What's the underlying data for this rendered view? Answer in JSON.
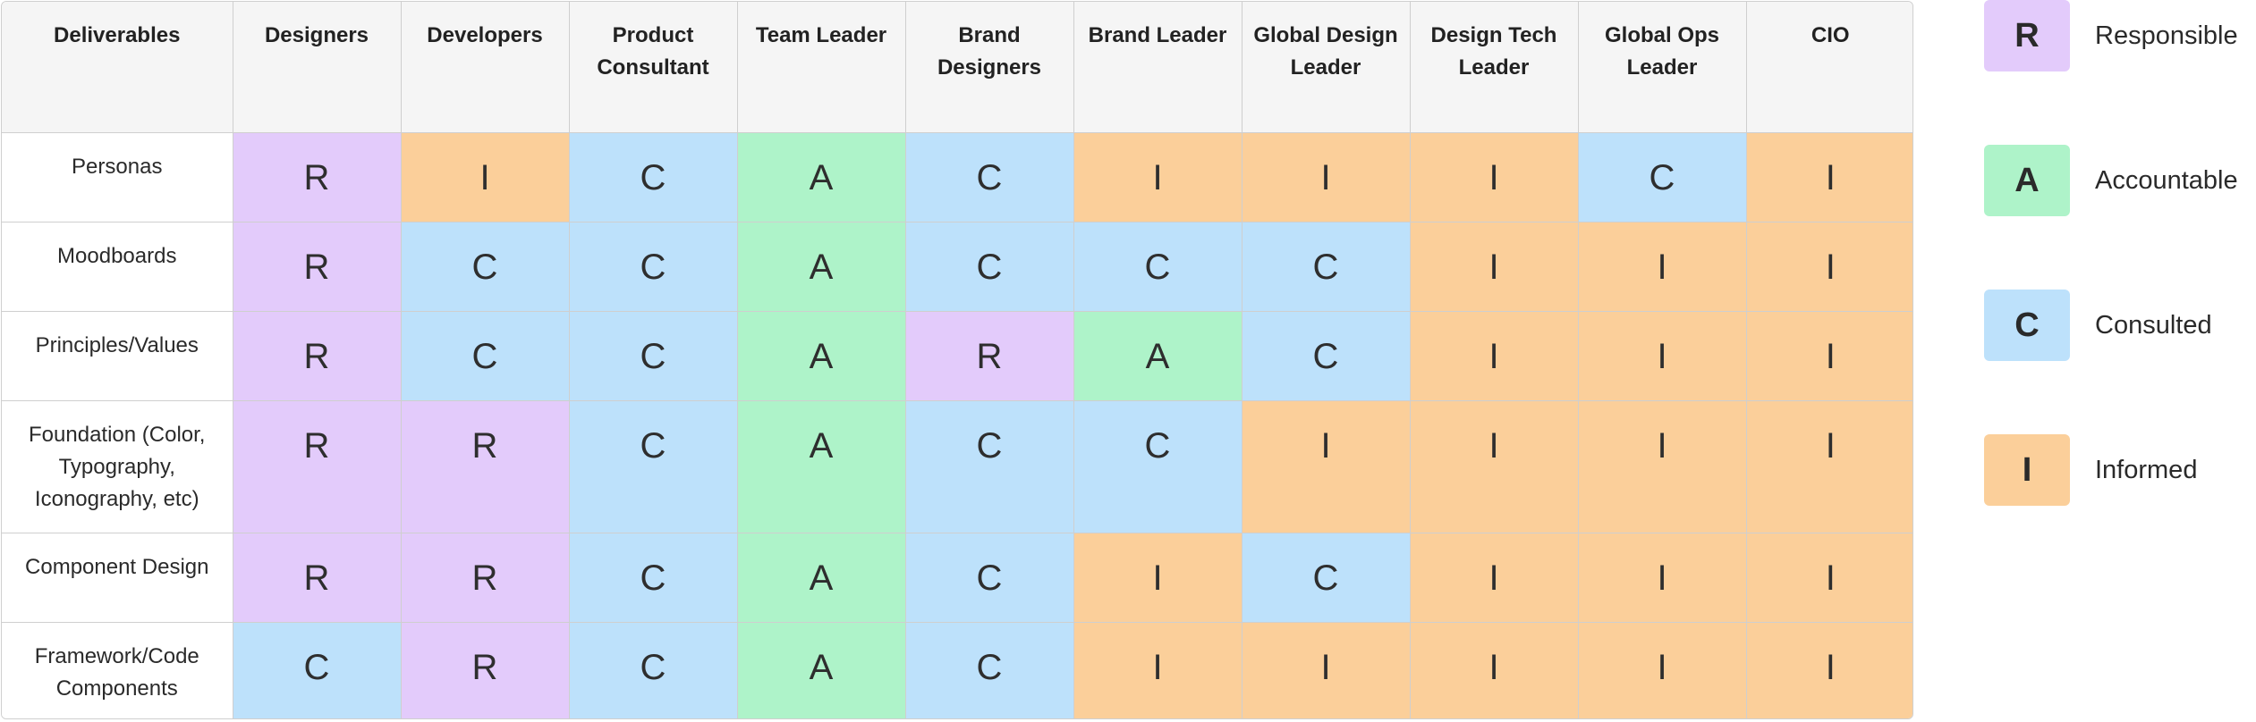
{
  "matrix": {
    "header": [
      "Deliverables",
      "Designers",
      "Developers",
      "Product Consultant",
      "Team Leader",
      "Brand Designers",
      "Brand Leader",
      "Global Design Leader",
      "Design Tech Leader",
      "Global Ops Leader",
      "CIO"
    ],
    "rows": [
      {
        "label": "Personas",
        "cells": [
          "R",
          "I",
          "C",
          "A",
          "C",
          "I",
          "I",
          "I",
          "C",
          "I"
        ]
      },
      {
        "label": "Moodboards",
        "cells": [
          "R",
          "C",
          "C",
          "A",
          "C",
          "C",
          "C",
          "I",
          "I",
          "I"
        ]
      },
      {
        "label": "Principles/Values",
        "cells": [
          "R",
          "C",
          "C",
          "A",
          "R",
          "A",
          "C",
          "I",
          "I",
          "I"
        ]
      },
      {
        "label": "Foundation (Color, Typography, Iconography, etc)",
        "cells": [
          "R",
          "R",
          "C",
          "A",
          "C",
          "C",
          "I",
          "I",
          "I",
          "I"
        ]
      },
      {
        "label": "Component Design",
        "cells": [
          "R",
          "R",
          "C",
          "A",
          "C",
          "I",
          "C",
          "I",
          "I",
          "I"
        ]
      },
      {
        "label": "Framework/Code Components",
        "cells": [
          "C",
          "R",
          "C",
          "A",
          "C",
          "I",
          "I",
          "I",
          "I",
          "I"
        ]
      }
    ]
  },
  "legend": [
    {
      "letter": "R",
      "label": "Responsible",
      "color": "#e3cbfb"
    },
    {
      "letter": "A",
      "label": "Accountable",
      "color": "#aef3c9"
    },
    {
      "letter": "C",
      "label": "Consulted",
      "color": "#bde1fb"
    },
    {
      "letter": "I",
      "label": "Informed",
      "color": "#fbcf9a"
    }
  ]
}
